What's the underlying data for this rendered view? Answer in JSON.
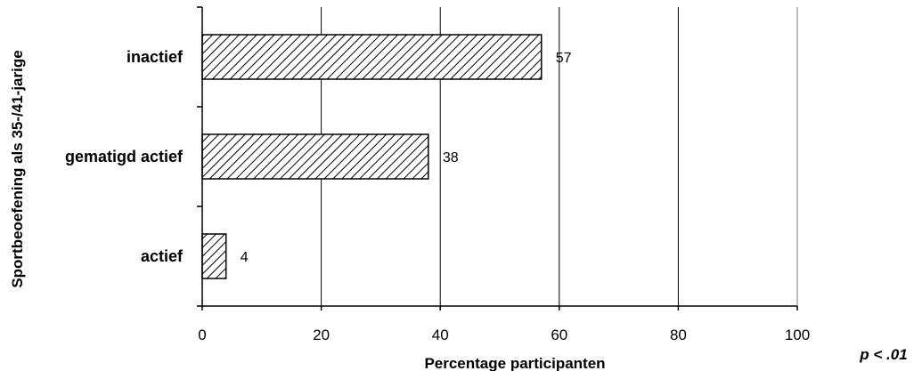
{
  "chart_data": {
    "type": "bar",
    "orientation": "horizontal",
    "categories": [
      "inactief",
      "gematigd actief",
      "actief"
    ],
    "values": [
      57,
      38,
      4
    ],
    "data_labels": [
      "57",
      "38",
      "4"
    ],
    "xlabel": "Percentage participanten",
    "ylabel": "Sportbeoefening als 35-/41-jarige",
    "xlim": [
      0,
      100
    ],
    "x_ticks": [
      0,
      20,
      40,
      60,
      80,
      100
    ],
    "x_tick_labels": [
      "0",
      "20",
      "40",
      "60",
      "80",
      "100"
    ],
    "grid": true,
    "legend": "none",
    "bar_fill": "diagonal hatch",
    "colors": {
      "bar_stroke": "#000000",
      "hatch": "#000000",
      "background": "#ffffff",
      "right_border": "#bdbdbd"
    },
    "annotation": "p < .01"
  }
}
